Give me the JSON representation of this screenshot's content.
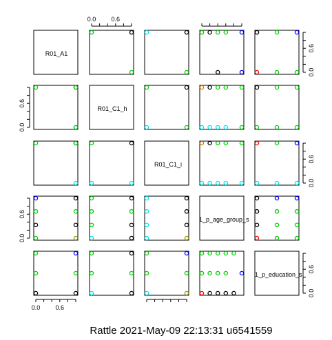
{
  "chart_data": {
    "type": "scatter",
    "variables": [
      "R01_A1",
      "R01_C1_h",
      "R01_C1_i",
      "1_p_age_group_s",
      "1_p_education_s"
    ],
    "tick_labels": [
      "0.0",
      "0.6"
    ],
    "ticks": [
      0,
      0.2,
      0.4,
      0.6,
      0.8,
      1.0
    ],
    "axis_range": [
      0,
      1
    ],
    "footer": "Rattle 2021-May-09 22:13:31 u6541559",
    "colors": {
      "black": "#000000",
      "red": "#ff0000",
      "green": "#00cc00",
      "blue": "#0000ff",
      "cyan": "#00e5e5",
      "olive": "#999900",
      "orange": "#cc7a00"
    },
    "panels": [
      {
        "row": 0,
        "col": 1,
        "points": [
          [
            0,
            1,
            "cyan"
          ],
          [
            0,
            1,
            "green"
          ],
          [
            1,
            1,
            "green"
          ],
          [
            1,
            1,
            "black"
          ],
          [
            1,
            0,
            "green"
          ]
        ]
      },
      {
        "row": 0,
        "col": 2,
        "points": [
          [
            0,
            1,
            "cyan"
          ],
          [
            1,
            1,
            "green"
          ],
          [
            1,
            1,
            "black"
          ],
          [
            1,
            0,
            "green"
          ]
        ]
      },
      {
        "row": 0,
        "col": 3,
        "points": [
          [
            0,
            1,
            "olive"
          ],
          [
            0,
            1,
            "green"
          ],
          [
            0.2,
            1,
            "black"
          ],
          [
            0.4,
            1,
            "green"
          ],
          [
            0.6,
            1,
            "green"
          ],
          [
            1,
            1,
            "blue"
          ],
          [
            0.4,
            0,
            "black"
          ],
          [
            1,
            0,
            "blue"
          ]
        ]
      },
      {
        "row": 0,
        "col": 4,
        "points": [
          [
            0,
            1,
            "red"
          ],
          [
            0,
            1,
            "black"
          ],
          [
            0.5,
            1,
            "green"
          ],
          [
            1,
            1,
            "blue"
          ],
          [
            0,
            0,
            "red"
          ],
          [
            0.5,
            0,
            "green"
          ],
          [
            1,
            0,
            "green"
          ]
        ]
      },
      {
        "row": 1,
        "col": 0,
        "points": [
          [
            0,
            1,
            "green"
          ],
          [
            1,
            1,
            "black"
          ],
          [
            1,
            1,
            "green"
          ],
          [
            1,
            0,
            "cyan"
          ],
          [
            1,
            0,
            "green"
          ]
        ]
      },
      {
        "row": 1,
        "col": 2,
        "points": [
          [
            0,
            1,
            "green"
          ],
          [
            1,
            1,
            "black"
          ],
          [
            0,
            0,
            "cyan"
          ],
          [
            1,
            0,
            "green"
          ]
        ]
      },
      {
        "row": 1,
        "col": 3,
        "points": [
          [
            0,
            1,
            "orange"
          ],
          [
            0.2,
            1,
            "black"
          ],
          [
            0.4,
            1,
            "green"
          ],
          [
            0.6,
            1,
            "green"
          ],
          [
            1,
            1,
            "green"
          ],
          [
            0,
            0,
            "cyan"
          ],
          [
            0.2,
            0,
            "cyan"
          ],
          [
            0.4,
            0,
            "cyan"
          ],
          [
            0.6,
            0,
            "cyan"
          ],
          [
            1,
            0,
            "green"
          ]
        ]
      },
      {
        "row": 1,
        "col": 4,
        "points": [
          [
            0,
            1,
            "black"
          ],
          [
            0.5,
            1,
            "green"
          ],
          [
            1,
            1,
            "green"
          ],
          [
            0,
            0,
            "green"
          ],
          [
            0.5,
            0,
            "green"
          ],
          [
            1,
            0,
            "green"
          ]
        ]
      },
      {
        "row": 2,
        "col": 0,
        "points": [
          [
            0,
            1,
            "green"
          ],
          [
            1,
            1,
            "black"
          ],
          [
            1,
            1,
            "green"
          ],
          [
            1,
            0,
            "cyan"
          ]
        ]
      },
      {
        "row": 2,
        "col": 1,
        "points": [
          [
            0,
            1,
            "green"
          ],
          [
            1,
            1,
            "black"
          ],
          [
            0,
            0,
            "cyan"
          ],
          [
            1,
            0,
            "cyan"
          ]
        ]
      },
      {
        "row": 2,
        "col": 3,
        "points": [
          [
            0,
            1,
            "orange"
          ],
          [
            0.2,
            1,
            "black"
          ],
          [
            0.4,
            1,
            "green"
          ],
          [
            0.6,
            1,
            "green"
          ],
          [
            1,
            1,
            "green"
          ],
          [
            0,
            0,
            "cyan"
          ],
          [
            0.2,
            0,
            "cyan"
          ],
          [
            0.4,
            0,
            "cyan"
          ],
          [
            0.6,
            0,
            "cyan"
          ],
          [
            1,
            0,
            "cyan"
          ]
        ]
      },
      {
        "row": 2,
        "col": 4,
        "points": [
          [
            0,
            1,
            "red"
          ],
          [
            0.5,
            1,
            "green"
          ],
          [
            1,
            1,
            "blue"
          ],
          [
            0,
            0,
            "cyan"
          ],
          [
            0.5,
            0,
            "cyan"
          ],
          [
            1,
            0,
            "cyan"
          ]
        ]
      },
      {
        "row": 3,
        "col": 0,
        "points": [
          [
            0,
            1,
            "blue"
          ],
          [
            1,
            1,
            "black"
          ],
          [
            0,
            0.67,
            "green"
          ],
          [
            1,
            0.67,
            "green"
          ],
          [
            0,
            0.33,
            "black"
          ],
          [
            1,
            0.33,
            "black"
          ],
          [
            0,
            0,
            "green"
          ],
          [
            1,
            0,
            "olive"
          ]
        ]
      },
      {
        "row": 3,
        "col": 1,
        "points": [
          [
            0,
            1,
            "green"
          ],
          [
            1,
            1,
            "black"
          ],
          [
            0,
            0.67,
            "green"
          ],
          [
            1,
            0.67,
            "green"
          ],
          [
            0,
            0.33,
            "green"
          ],
          [
            1,
            0.33,
            "black"
          ],
          [
            0,
            0,
            "cyan"
          ],
          [
            1,
            0,
            "black"
          ]
        ]
      },
      {
        "row": 3,
        "col": 2,
        "points": [
          [
            0,
            1,
            "cyan"
          ],
          [
            1,
            1,
            "black"
          ],
          [
            0,
            0.67,
            "cyan"
          ],
          [
            1,
            0.67,
            "black"
          ],
          [
            0,
            0.33,
            "cyan"
          ],
          [
            1,
            0.33,
            "black"
          ],
          [
            0,
            0,
            "cyan"
          ],
          [
            1,
            0,
            "olive"
          ]
        ]
      },
      {
        "row": 3,
        "col": 4,
        "points": [
          [
            0,
            1,
            "black"
          ],
          [
            0.5,
            1,
            "blue"
          ],
          [
            1,
            1,
            "blue"
          ],
          [
            0,
            0.67,
            "black"
          ],
          [
            0.5,
            0.67,
            "green"
          ],
          [
            1,
            0.67,
            "green"
          ],
          [
            0,
            0.33,
            "black"
          ],
          [
            0.5,
            0.33,
            "green"
          ],
          [
            1,
            0.33,
            "green"
          ],
          [
            0,
            0,
            "red"
          ],
          [
            0.5,
            0,
            "green"
          ],
          [
            1,
            0,
            "green"
          ]
        ]
      },
      {
        "row": 4,
        "col": 0,
        "points": [
          [
            0,
            1,
            "green"
          ],
          [
            1,
            1,
            "blue"
          ],
          [
            0,
            0.5,
            "green"
          ],
          [
            1,
            0.5,
            "green"
          ],
          [
            0,
            0,
            "black"
          ],
          [
            1,
            0,
            "black"
          ]
        ]
      },
      {
        "row": 4,
        "col": 1,
        "points": [
          [
            0,
            1,
            "green"
          ],
          [
            1,
            1,
            "black"
          ],
          [
            0,
            0.5,
            "green"
          ],
          [
            1,
            0.5,
            "green"
          ],
          [
            0,
            0,
            "cyan"
          ],
          [
            1,
            0,
            "black"
          ]
        ]
      },
      {
        "row": 4,
        "col": 2,
        "points": [
          [
            0,
            1,
            "green"
          ],
          [
            1,
            1,
            "blue"
          ],
          [
            0,
            0.5,
            "green"
          ],
          [
            1,
            0.5,
            "green"
          ],
          [
            0,
            0,
            "cyan"
          ],
          [
            1,
            0,
            "olive"
          ]
        ]
      },
      {
        "row": 4,
        "col": 3,
        "points": [
          [
            0,
            1,
            "green"
          ],
          [
            0.2,
            1,
            "green"
          ],
          [
            0.4,
            1,
            "green"
          ],
          [
            0.6,
            1,
            "green"
          ],
          [
            0.8,
            1,
            "green"
          ],
          [
            0,
            0.5,
            "green"
          ],
          [
            0.2,
            0.5,
            "green"
          ],
          [
            0.4,
            0.5,
            "green"
          ],
          [
            0.6,
            0.5,
            "green"
          ],
          [
            1,
            0.5,
            "blue"
          ],
          [
            0,
            0,
            "red"
          ],
          [
            0.2,
            0,
            "black"
          ],
          [
            0.4,
            0,
            "black"
          ],
          [
            0.6,
            0,
            "black"
          ],
          [
            0.8,
            0,
            "black"
          ]
        ]
      }
    ]
  }
}
